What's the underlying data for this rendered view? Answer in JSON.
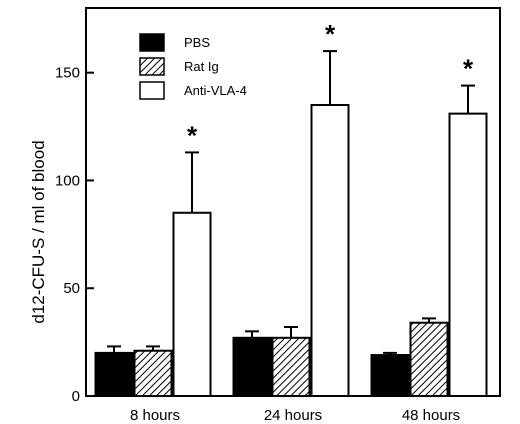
{
  "chart_data": {
    "type": "bar",
    "categories": [
      "8 hours",
      "24 hours",
      "48 hours"
    ],
    "series": [
      {
        "name": "PBS",
        "values": [
          20,
          27,
          19
        ],
        "errors": [
          3,
          3,
          1
        ],
        "fill": "solid"
      },
      {
        "name": "Rat Ig",
        "values": [
          21,
          27,
          34
        ],
        "errors": [
          2,
          5,
          2
        ],
        "fill": "hatched"
      },
      {
        "name": "Anti-VLA-4",
        "values": [
          85,
          135,
          131
        ],
        "errors": [
          28,
          25,
          13
        ],
        "fill": "empty"
      }
    ],
    "significance": [
      {
        "series": "Anti-VLA-4",
        "category": "8 hours",
        "symbol": "*"
      },
      {
        "series": "Anti-VLA-4",
        "category": "24 hours",
        "symbol": "*"
      },
      {
        "series": "Anti-VLA-4",
        "category": "48 hours",
        "symbol": "*"
      }
    ],
    "title": "",
    "xlabel": "",
    "ylabel": "d12-CFU-S / ml of blood",
    "ylim": [
      0,
      180
    ],
    "yticks": [
      0,
      50,
      100,
      150
    ],
    "grid": false,
    "legend": "top-left",
    "colors": {
      "ink": "#000000",
      "background": "#ffffff"
    }
  }
}
